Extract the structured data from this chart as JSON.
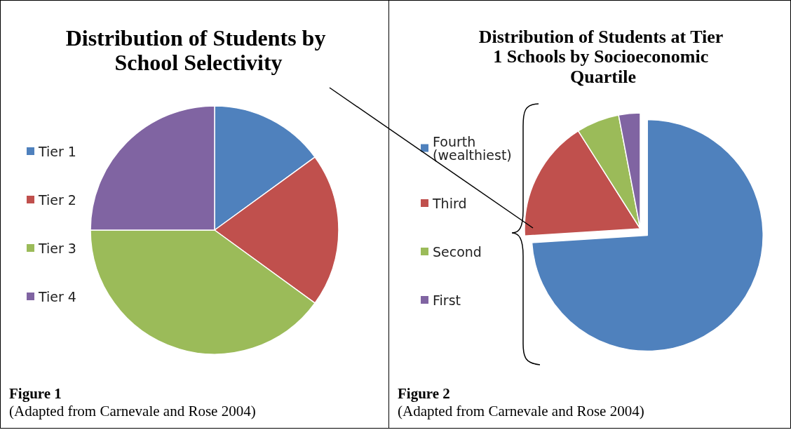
{
  "chart_data": [
    {
      "type": "pie",
      "title": "Distribution of Students by School Selectivity",
      "categories": [
        "Tier 1",
        "Tier 2",
        "Tier 3",
        "Tier 4"
      ],
      "values": [
        15,
        20,
        40,
        25
      ],
      "colors": [
        "#4f81bd",
        "#c0504d",
        "#9bbb59",
        "#8064a2"
      ],
      "legend": "left",
      "annotations": [
        "Figure 1",
        "(Adapted from Carnevale and Rose 2004)"
      ]
    },
    {
      "type": "pie",
      "title": "Distribution of Students at Tier 1 Schools by Socioeconomic Quartile",
      "categories": [
        "Fourth (wealthiest)",
        "Third",
        "Second",
        "First"
      ],
      "values": [
        74,
        17,
        6,
        3
      ],
      "colors": [
        "#4f81bd",
        "#c0504d",
        "#9bbb59",
        "#8064a2"
      ],
      "legend": "left",
      "annotations": [
        "Figure 2",
        "(Adapted from Carnevale and Rose 2004)"
      ]
    }
  ]
}
